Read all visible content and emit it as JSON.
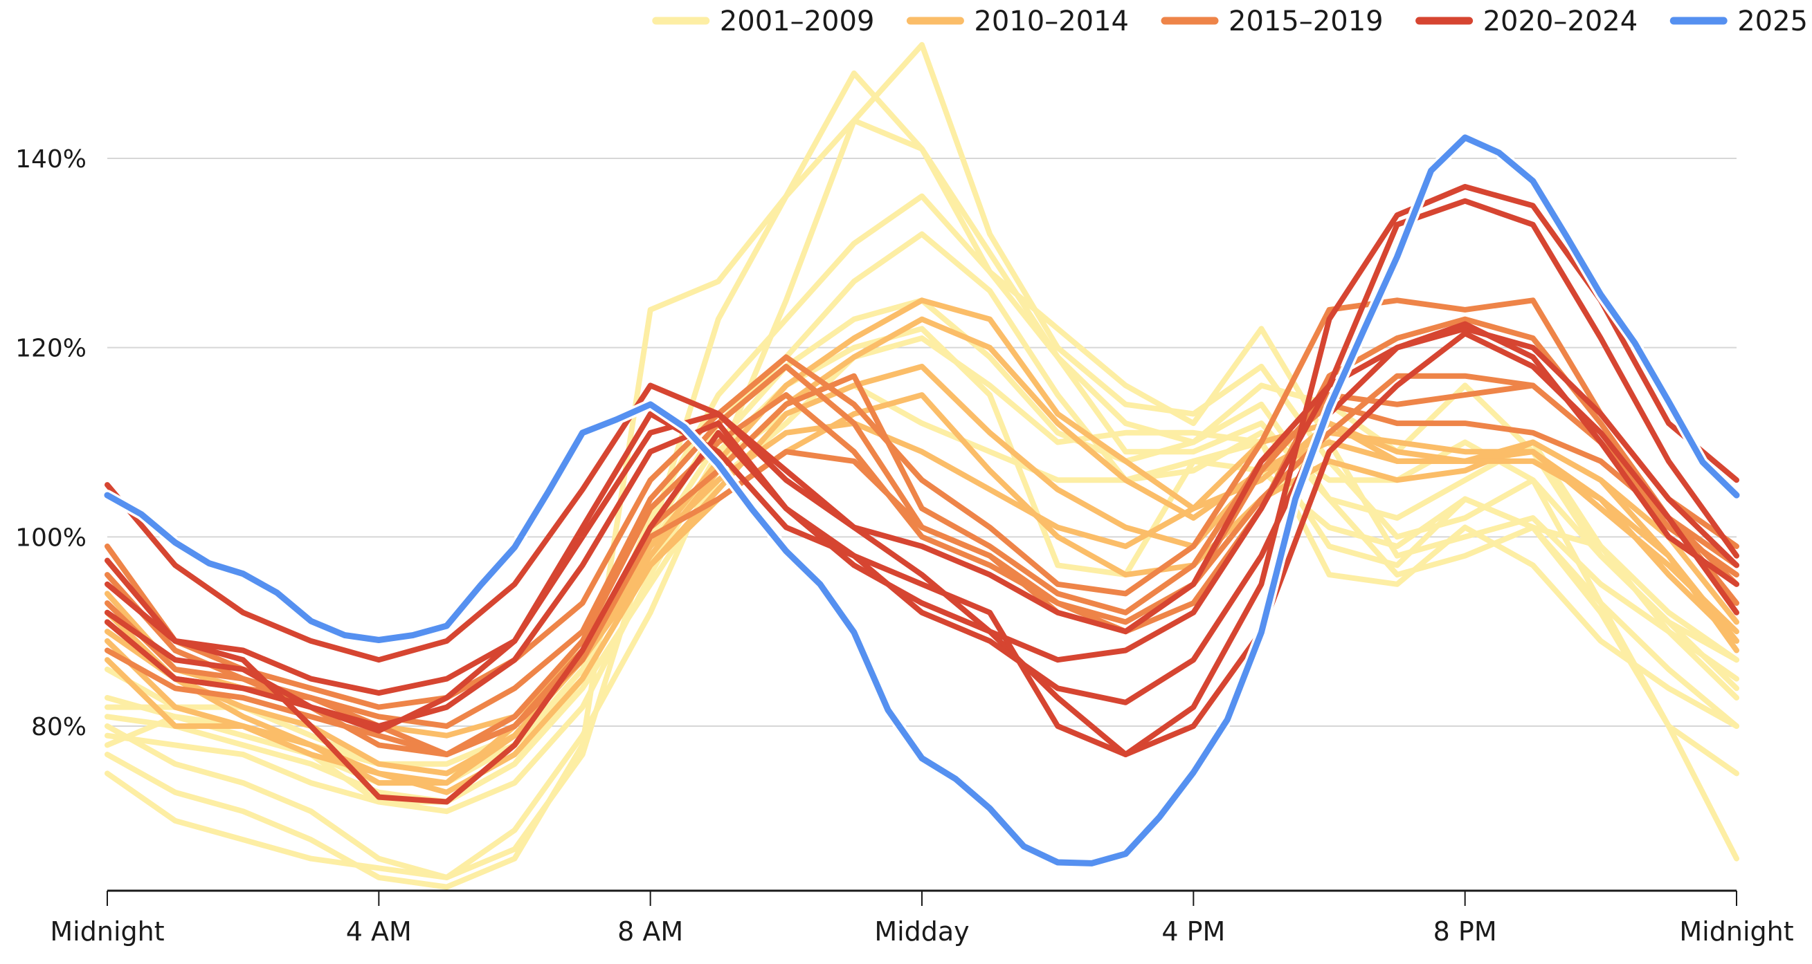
{
  "chart_data": {
    "type": "line",
    "title": "",
    "xlabel": "",
    "ylabel": "",
    "x_unit": "hours since midnight",
    "xlim": [
      0,
      24
    ],
    "ylim": [
      62,
      153
    ],
    "grid": true,
    "legend_position": "top-right",
    "x_ticks": [
      {
        "value": 0,
        "label": "Midnight"
      },
      {
        "value": 4,
        "label": "4 AM"
      },
      {
        "value": 8,
        "label": "8 AM"
      },
      {
        "value": 12,
        "label": "Midday"
      },
      {
        "value": 16,
        "label": "4 PM"
      },
      {
        "value": 20,
        "label": "8 PM"
      },
      {
        "value": 24,
        "label": "Midnight"
      }
    ],
    "y_ticks": [
      {
        "value": 80,
        "label": "80%"
      },
      {
        "value": 100,
        "label": "100%"
      },
      {
        "value": 120,
        "label": "120%"
      },
      {
        "value": 140,
        "label": "140%"
      }
    ],
    "groups": [
      {
        "name": "2001–2009",
        "color": "#fdeea4"
      },
      {
        "name": "2010–2014",
        "color": "#fbbd68"
      },
      {
        "name": "2015–2019",
        "color": "#ee8448"
      },
      {
        "name": "2020–2024",
        "color": "#d64531"
      },
      {
        "name": "2025",
        "color": "#5590f0"
      }
    ],
    "series": [
      {
        "group": "2001–2009",
        "x_step_hours": 1,
        "values": [
          75,
          70,
          68,
          66,
          65,
          64,
          69,
          79,
          92,
          108,
          125,
          144,
          152,
          132,
          120,
          114,
          113,
          118,
          108,
          100,
          102,
          106,
          93,
          80,
          75
        ]
      },
      {
        "group": "2001–2009",
        "x_step_hours": 1,
        "values": [
          77,
          73,
          71,
          68,
          64,
          63,
          66,
          78,
          124,
          127,
          136,
          149,
          141,
          128,
          122,
          116,
          112,
          122,
          110,
          98,
          100,
          102,
          95,
          90,
          85
        ]
      },
      {
        "group": "2001–2009",
        "x_step_hours": 1,
        "values": [
          80,
          76,
          74,
          71,
          66,
          64,
          67,
          77,
          100,
          123,
          136,
          144,
          141,
          130,
          119,
          112,
          110,
          114,
          104,
          96,
          98,
          101,
          93,
          86,
          80
        ]
      },
      {
        "group": "2001–2009",
        "x_step_hours": 1,
        "values": [
          81,
          80,
          78,
          76,
          73,
          72,
          76,
          85,
          102,
          115,
          123,
          131,
          136,
          128,
          119,
          109,
          109,
          112,
          104,
          102,
          106,
          110,
          99,
          92,
          87
        ]
      },
      {
        "group": "2001–2009",
        "x_step_hours": 1,
        "values": [
          83,
          81,
          79,
          77,
          74,
          74,
          78,
          86,
          100,
          112,
          119,
          127,
          132,
          126,
          115,
          106,
          107,
          111,
          106,
          106,
          110,
          106,
          98,
          91,
          84
        ]
      },
      {
        "group": "2001–2009",
        "x_step_hours": 1,
        "values": [
          86,
          82,
          80,
          78,
          76,
          76,
          79,
          87,
          99,
          110,
          118,
          123,
          125,
          119,
          111,
          108,
          110,
          116,
          114,
          109,
          116,
          109,
          98,
          91,
          87
        ]
      },
      {
        "group": "2001–2009",
        "x_step_hours": 1,
        "values": [
          79,
          78,
          77,
          74,
          72,
          71,
          74,
          82,
          96,
          109,
          116,
          120,
          122,
          115,
          97,
          96,
          108,
          110,
          99,
          97,
          104,
          101,
          99,
          90,
          83
        ]
      },
      {
        "group": "2001–2009",
        "x_step_hours": 1,
        "values": [
          82,
          82,
          82,
          79,
          76,
          75,
          78,
          85,
          97,
          108,
          113,
          116,
          112,
          109,
          106,
          106,
          108,
          107,
          101,
          99,
          104,
          101,
          92,
          80,
          66
        ]
      },
      {
        "group": "2001–2009",
        "x_step_hours": 1,
        "values": [
          78,
          81,
          80,
          77,
          72,
          72,
          76,
          84,
          95,
          106,
          112,
          119,
          121,
          116,
          110,
          111,
          111,
          110,
          96,
          95,
          101,
          97,
          89,
          84,
          80
        ]
      },
      {
        "group": "2010–2014",
        "x_step_hours": 1,
        "values": [
          94,
          86,
          84,
          82,
          80,
          79,
          81,
          88,
          99,
          108,
          116,
          121,
          125,
          123,
          113,
          108,
          103,
          106,
          112,
          108,
          108,
          110,
          106,
          100,
          91
        ]
      },
      {
        "group": "2010–2014",
        "x_step_hours": 1,
        "values": [
          90,
          85,
          82,
          80,
          76,
          75,
          79,
          87,
          98,
          107,
          114,
          119,
          123,
          120,
          112,
          106,
          102,
          107,
          111,
          110,
          109,
          109,
          104,
          98,
          89
        ]
      },
      {
        "group": "2010–2014",
        "x_step_hours": 1,
        "values": [
          89,
          82,
          80,
          77,
          75,
          74,
          79,
          87,
          97,
          105,
          113,
          116,
          118,
          111,
          105,
          101,
          99,
          107,
          110,
          108,
          108,
          109,
          103,
          97,
          90
        ]
      },
      {
        "group": "2010–2014",
        "x_step_hours": 1,
        "values": [
          87,
          80,
          80,
          78,
          75,
          73,
          77,
          85,
          97,
          104,
          109,
          113,
          115,
          107,
          100,
          96,
          97,
          104,
          108,
          106,
          107,
          110,
          106,
          98,
          88
        ]
      },
      {
        "group": "2010–2014",
        "x_step_hours": 1,
        "values": [
          92,
          85,
          81,
          78,
          74,
          74,
          80,
          88,
          99,
          106,
          111,
          112,
          109,
          105,
          101,
          99,
          103,
          110,
          112,
          109,
          108,
          108,
          104,
          96,
          89
        ]
      },
      {
        "group": "2015–2019",
        "x_step_hours": 1,
        "values": [
          99,
          89,
          86,
          84,
          82,
          83,
          87,
          93,
          106,
          113,
          119,
          114,
          106,
          101,
          95,
          94,
          99,
          110,
          124,
          125,
          124,
          125,
          113,
          104,
          99
        ]
      },
      {
        "group": "2015–2019",
        "x_step_hours": 1,
        "values": [
          93,
          86,
          85,
          83,
          81,
          80,
          84,
          90,
          104,
          112,
          118,
          112,
          101,
          98,
          92,
          90,
          93,
          103,
          117,
          121,
          123,
          121,
          112,
          102,
          95
        ]
      },
      {
        "group": "2015–2019",
        "x_step_hours": 1,
        "values": [
          96,
          88,
          85,
          82,
          78,
          77,
          81,
          89,
          103,
          110,
          115,
          109,
          100,
          97,
          93,
          91,
          95,
          107,
          115,
          114,
          115,
          116,
          110,
          102,
          97
        ]
      },
      {
        "group": "2015–2019",
        "x_step_hours": 1,
        "values": [
          91,
          85,
          84,
          83,
          80,
          77,
          80,
          88,
          101,
          107,
          114,
          117,
          103,
          99,
          94,
          92,
          97,
          108,
          114,
          112,
          112,
          111,
          108,
          102,
          93
        ]
      },
      {
        "group": "2015–2019",
        "x_step_hours": 1,
        "values": [
          88,
          84,
          83,
          81,
          79,
          77,
          80,
          87,
          100,
          104,
          109,
          108,
          101,
          98,
          93,
          90,
          95,
          104,
          111,
          117,
          117,
          116,
          110,
          101,
          96
        ]
      },
      {
        "group": "2020–2024",
        "x_step_hours": 1,
        "values": [
          105.5,
          97,
          92,
          89,
          87,
          89,
          95,
          105,
          116,
          113,
          107,
          101,
          96,
          90,
          83,
          77,
          82,
          95,
          123,
          134,
          137,
          135,
          125,
          112,
          106
        ]
      },
      {
        "group": "2020–2024",
        "x_step_hours": 1,
        "values": [
          97.5,
          89,
          88,
          85,
          83.5,
          85,
          89,
          100,
          111,
          113,
          106,
          101,
          99,
          96,
          92,
          90,
          95,
          108,
          116,
          120,
          122,
          120,
          113,
          104,
          97
        ]
      },
      {
        "group": "2020–2024",
        "x_step_hours": 1,
        "values": [
          92,
          87,
          86,
          82,
          80,
          82,
          87,
          97,
          109,
          112,
          103,
          98,
          92,
          89,
          84,
          82.5,
          87,
          98,
          113,
          120,
          122.5,
          119,
          110,
          100,
          95
        ]
      },
      {
        "group": "2020–2024",
        "x_step_hours": 1,
        "values": [
          95,
          89,
          87,
          80,
          72.5,
          72,
          78,
          88,
          101,
          111,
          103,
          97,
          93,
          90,
          87,
          88,
          92,
          103,
          116,
          133,
          135.5,
          133,
          121,
          108,
          98
        ]
      },
      {
        "group": "2020–2024",
        "x_step_hours": 1,
        "values": [
          91,
          85,
          84,
          82,
          79.5,
          83,
          89,
          101,
          113,
          109,
          101,
          98,
          95,
          92,
          80,
          77,
          80,
          90,
          109,
          116,
          121.5,
          118,
          111,
          102,
          92
        ]
      },
      {
        "group": "2025",
        "x_step_hours": 0.5,
        "values": [
          104.4,
          102.4,
          99.4,
          97.2,
          96.1,
          94.1,
          91.1,
          89.6,
          89.1,
          89.6,
          90.6,
          94.9,
          98.9,
          104.8,
          111.0,
          112.4,
          114.0,
          111.6,
          107.7,
          102.9,
          98.5,
          95.0,
          89.9,
          81.7,
          76.6,
          74.4,
          71.3,
          67.3,
          65.6,
          65.5,
          66.5,
          70.4,
          75.1,
          80.7,
          89.9,
          104.0,
          113.7,
          121.7,
          129.6,
          138.7,
          142.2,
          140.6,
          137.6,
          131.7,
          125.6,
          120.5,
          114.3,
          107.9,
          104.4
        ]
      }
    ]
  }
}
